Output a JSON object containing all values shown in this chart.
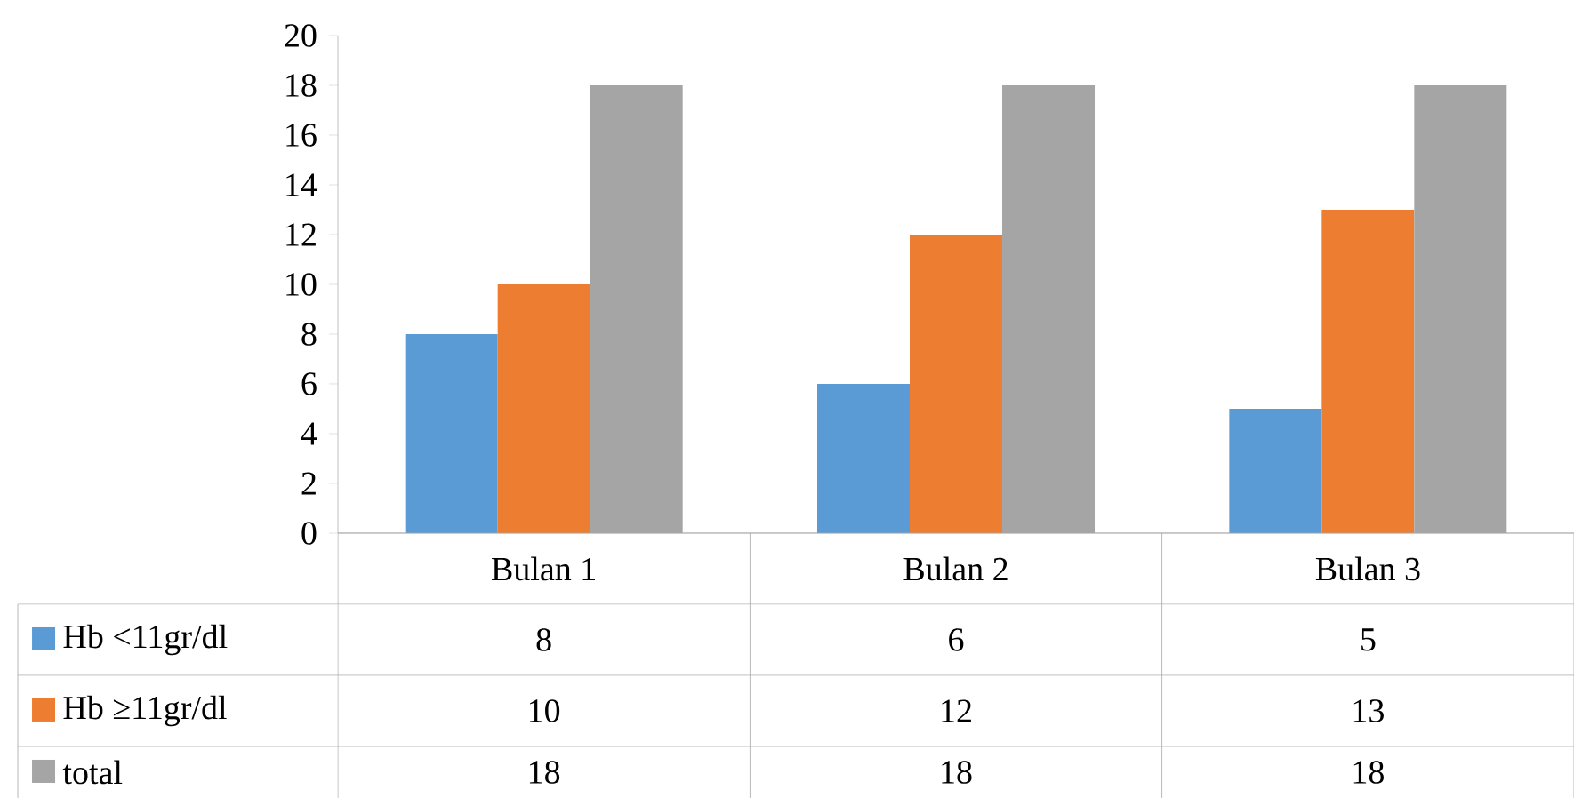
{
  "chart_data": {
    "type": "bar",
    "categories": [
      "Bulan 1",
      "Bulan 2",
      "Bulan 3"
    ],
    "series": [
      {
        "name": "Hb <11gr/dl",
        "color": "#5b9bd5",
        "values": [
          8,
          6,
          5
        ]
      },
      {
        "name": "Hb ≥11gr/dl",
        "color": "#ed7d31",
        "values": [
          10,
          12,
          13
        ]
      },
      {
        "name": "total",
        "color": "#a5a5a5",
        "values": [
          18,
          18,
          18
        ]
      }
    ],
    "ylim": [
      0,
      20
    ],
    "yticks": [
      0,
      2,
      4,
      6,
      8,
      10,
      12,
      14,
      16,
      18,
      20
    ],
    "data_labels": true,
    "legend": "bottom",
    "grid": false
  }
}
